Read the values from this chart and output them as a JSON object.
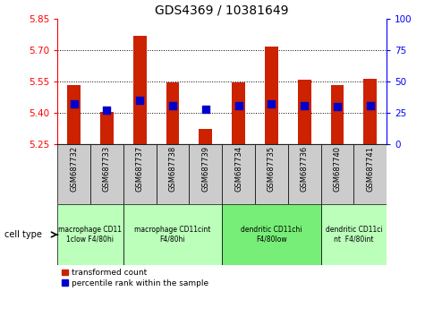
{
  "title": "GDS4369 / 10381649",
  "samples": [
    "GSM687732",
    "GSM687733",
    "GSM687737",
    "GSM687738",
    "GSM687739",
    "GSM687734",
    "GSM687735",
    "GSM687736",
    "GSM687740",
    "GSM687741"
  ],
  "transformed_count": [
    5.535,
    5.405,
    5.77,
    5.545,
    5.325,
    5.545,
    5.72,
    5.56,
    5.535,
    5.565
  ],
  "percentile_rank": [
    32,
    27,
    35,
    31,
    28,
    31,
    32,
    31,
    30,
    31
  ],
  "ylim": [
    5.25,
    5.85
  ],
  "yticks_left": [
    5.25,
    5.4,
    5.55,
    5.7,
    5.85
  ],
  "yticks_right": [
    0,
    25,
    50,
    75,
    100
  ],
  "bar_color": "#cc2200",
  "dot_color": "#0000cc",
  "baseline": 5.25,
  "cell_type_groups": [
    {
      "label": "macrophage CD11\n1clow F4/80hi",
      "start": 0,
      "end": 2,
      "color": "#bbffbb"
    },
    {
      "label": "macrophage CD11cint\nF4/80hi",
      "start": 2,
      "end": 5,
      "color": "#bbffbb"
    },
    {
      "label": "dendritic CD11chi\nF4/80low",
      "start": 5,
      "end": 8,
      "color": "#77ee77"
    },
    {
      "label": "dendritic CD11ci\nnt  F4/80int",
      "start": 8,
      "end": 10,
      "color": "#bbffbb"
    }
  ],
  "legend_label_count": "transformed count",
  "legend_label_pct": "percentile rank within the sample",
  "grid_yticks": [
    5.4,
    5.55,
    5.7
  ],
  "dot_size": 30,
  "bar_width": 0.4,
  "sample_box_color": "#cccccc",
  "cell_type_label": "cell type"
}
